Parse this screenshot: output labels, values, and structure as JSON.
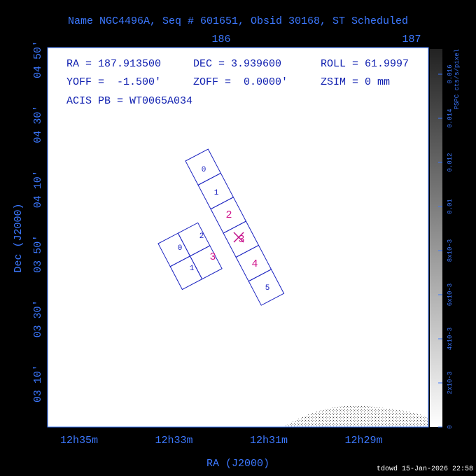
{
  "header": {
    "title": "Name NGC4496A, Seq # 601651, Obsid 30168, ST Scheduled"
  },
  "top_axis": {
    "ticks": [
      "186",
      "187"
    ]
  },
  "left_axis": {
    "label": "Dec (J2000)",
    "ticks": [
      "04 50'",
      "04 30'",
      "04 10'",
      "03 50'",
      "03 30'",
      "03 10'"
    ]
  },
  "bottom_axis": {
    "label": "RA (J2000)",
    "ticks": [
      "12h35m",
      "12h33m",
      "12h31m",
      "12h29m"
    ]
  },
  "info": {
    "lines": [
      [
        "RA = 187.913500",
        "DEC = 3.939600",
        "ROLL = 61.9997"
      ],
      [
        "YOFF =  -1.500'",
        "ZOFF =  0.0000'",
        "ZSIM = 0 mm"
      ],
      [
        "ACIS PB = WT0065A034"
      ]
    ]
  },
  "acis_s": {
    "chips": [
      "0",
      "1",
      "2",
      "3",
      "4",
      "5"
    ]
  },
  "acis_i": {
    "chips": [
      "0",
      "2",
      "1",
      "3"
    ]
  },
  "colorbar": {
    "label": "PSPC cts/s/pixel",
    "ticks": [
      "0",
      "2x10-3",
      "4x10-3",
      "6x10-3",
      "8x10-3",
      "0.01",
      "0.012",
      "0.014",
      "0.016"
    ]
  },
  "footer": {
    "text": "tdowd 15-Jan-2026 22:58"
  }
}
